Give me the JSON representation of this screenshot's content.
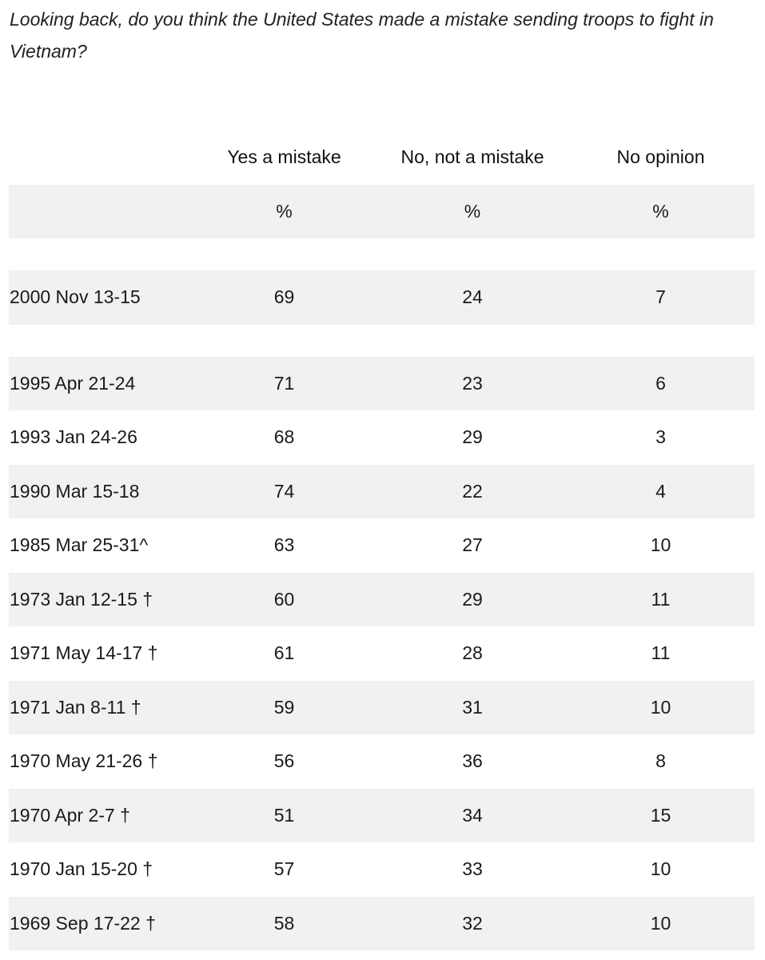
{
  "question": "Looking back, do you think the United States made a mistake sending troops to fight in Vietnam?",
  "table": {
    "columns": [
      "",
      "Yes a mistake",
      "No, not a mistake",
      "No opinion"
    ],
    "units": [
      "",
      "%",
      "%",
      "%"
    ],
    "rows": [
      {
        "date": "2000 Nov 13-15",
        "values": [
          "69",
          "24",
          "7"
        ]
      },
      {
        "date": "1995 Apr 21-24",
        "values": [
          "71",
          "23",
          "6"
        ]
      },
      {
        "date": "1993 Jan 24-26",
        "values": [
          "68",
          "29",
          "3"
        ]
      },
      {
        "date": "1990 Mar 15-18",
        "values": [
          "74",
          "22",
          "4"
        ]
      },
      {
        "date": "1985 Mar 25-31^",
        "values": [
          "63",
          "27",
          "10"
        ]
      },
      {
        "date": "1973 Jan 12-15 †",
        "values": [
          "60",
          "29",
          "11"
        ]
      },
      {
        "date": "1971 May 14-17 †",
        "values": [
          "61",
          "28",
          "11"
        ]
      },
      {
        "date": "1971 Jan 8-11 †",
        "values": [
          "59",
          "31",
          "10"
        ]
      },
      {
        "date": "1970 May 21-26 †",
        "values": [
          "56",
          "36",
          "8"
        ]
      },
      {
        "date": "1970 Apr 2-7 †",
        "values": [
          "51",
          "34",
          "15"
        ]
      },
      {
        "date": "1970 Jan 15-20 †",
        "values": [
          "57",
          "33",
          "10"
        ]
      },
      {
        "date": "1969 Sep 17-22 †",
        "values": [
          "58",
          "32",
          "10"
        ]
      }
    ]
  }
}
